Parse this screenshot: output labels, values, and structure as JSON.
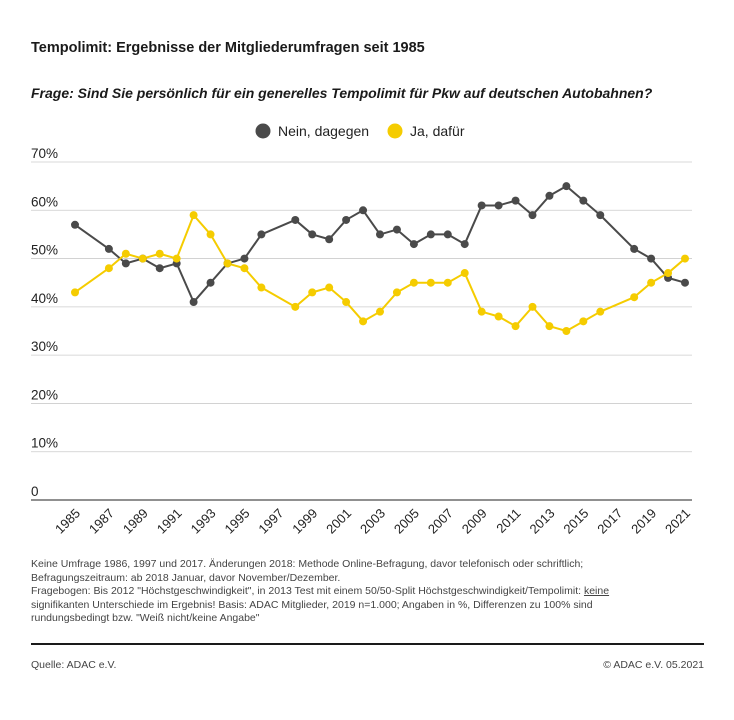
{
  "title": "Tempolimit: Ergebnisse der Mitgliederumfragen seit 1985",
  "question": "Frage: Sind Sie persönlich für ein generelles Tempolimit für Pkw auf deutschen Autobahnen?",
  "notes": {
    "line1": "Keine Umfrage 1986, 1997 und 2017. Änderungen 2018: Methode Online-Befragung, davor telefonisch oder schriftlich;",
    "line2": "Befragungszeitraum: ab 2018 Januar, davor November/Dezember.",
    "line3_pre": "Fragebogen: Bis 2012 \"Höchstgeschwindigkeit\", in 2013 Test mit einem 50/50-Split Höchstgeschwindigkeit/Tempolimit: ",
    "line3_u": "keine",
    "line4": "signifikanten Unterschiede im Ergebnis! Basis: ADAC Mitglieder, 2019 n=1.000; Angaben in %, Differenzen zu 100% sind",
    "line5": "rundungsbedingt bzw. \"Weiß nicht/keine Angabe\""
  },
  "source": "Quelle: ADAC e.V.",
  "copyright": "© ADAC e.V. 05.2021",
  "colors": {
    "nein": "#4a4a4a",
    "ja": "#f5cc00",
    "grid": "#cccccc",
    "axis": "#222222"
  },
  "chart_data": {
    "type": "line",
    "title": "Tempolimit: Ergebnisse der Mitgliederumfragen seit 1985",
    "xlabel": "",
    "ylabel": "",
    "ylim": [
      0,
      70
    ],
    "yticks": [
      0,
      10,
      20,
      30,
      40,
      50,
      60,
      70
    ],
    "ytick_labels": [
      "0",
      "10%",
      "20%",
      "30%",
      "40%",
      "50%",
      "60%",
      "70%"
    ],
    "xlim": [
      1985,
      2021
    ],
    "xticks": [
      1985,
      1987,
      1989,
      1991,
      1993,
      1995,
      1997,
      1999,
      2001,
      2003,
      2005,
      2007,
      2009,
      2011,
      2013,
      2015,
      2017,
      2019,
      2021
    ],
    "legend_position": "top-center",
    "series": [
      {
        "name": "Nein, dagegen",
        "color": "#4a4a4a",
        "x": [
          1985,
          1987,
          1988,
          1989,
          1990,
          1991,
          1992,
          1993,
          1994,
          1995,
          1996,
          1998,
          1999,
          2000,
          2001,
          2002,
          2003,
          2004,
          2005,
          2006,
          2007,
          2008,
          2009,
          2010,
          2011,
          2012,
          2013,
          2014,
          2015,
          2016,
          2018,
          2019,
          2020,
          2021
        ],
        "values": [
          57,
          52,
          49,
          50,
          48,
          49,
          41,
          45,
          49,
          50,
          55,
          58,
          55,
          54,
          58,
          60,
          55,
          56,
          53,
          55,
          55,
          53,
          61,
          61,
          62,
          59,
          63,
          65,
          62,
          59,
          52,
          50,
          46,
          45
        ]
      },
      {
        "name": "Ja, dafür",
        "color": "#f5cc00",
        "x": [
          1985,
          1987,
          1988,
          1989,
          1990,
          1991,
          1992,
          1993,
          1994,
          1995,
          1996,
          1998,
          1999,
          2000,
          2001,
          2002,
          2003,
          2004,
          2005,
          2006,
          2007,
          2008,
          2009,
          2010,
          2011,
          2012,
          2013,
          2014,
          2015,
          2016,
          2018,
          2019,
          2020,
          2021
        ],
        "values": [
          43,
          48,
          51,
          50,
          51,
          50,
          59,
          55,
          49,
          48,
          44,
          40,
          43,
          44,
          41,
          37,
          39,
          43,
          45,
          45,
          45,
          47,
          39,
          38,
          36,
          40,
          36,
          35,
          37,
          39,
          42,
          45,
          47,
          50
        ]
      }
    ]
  }
}
